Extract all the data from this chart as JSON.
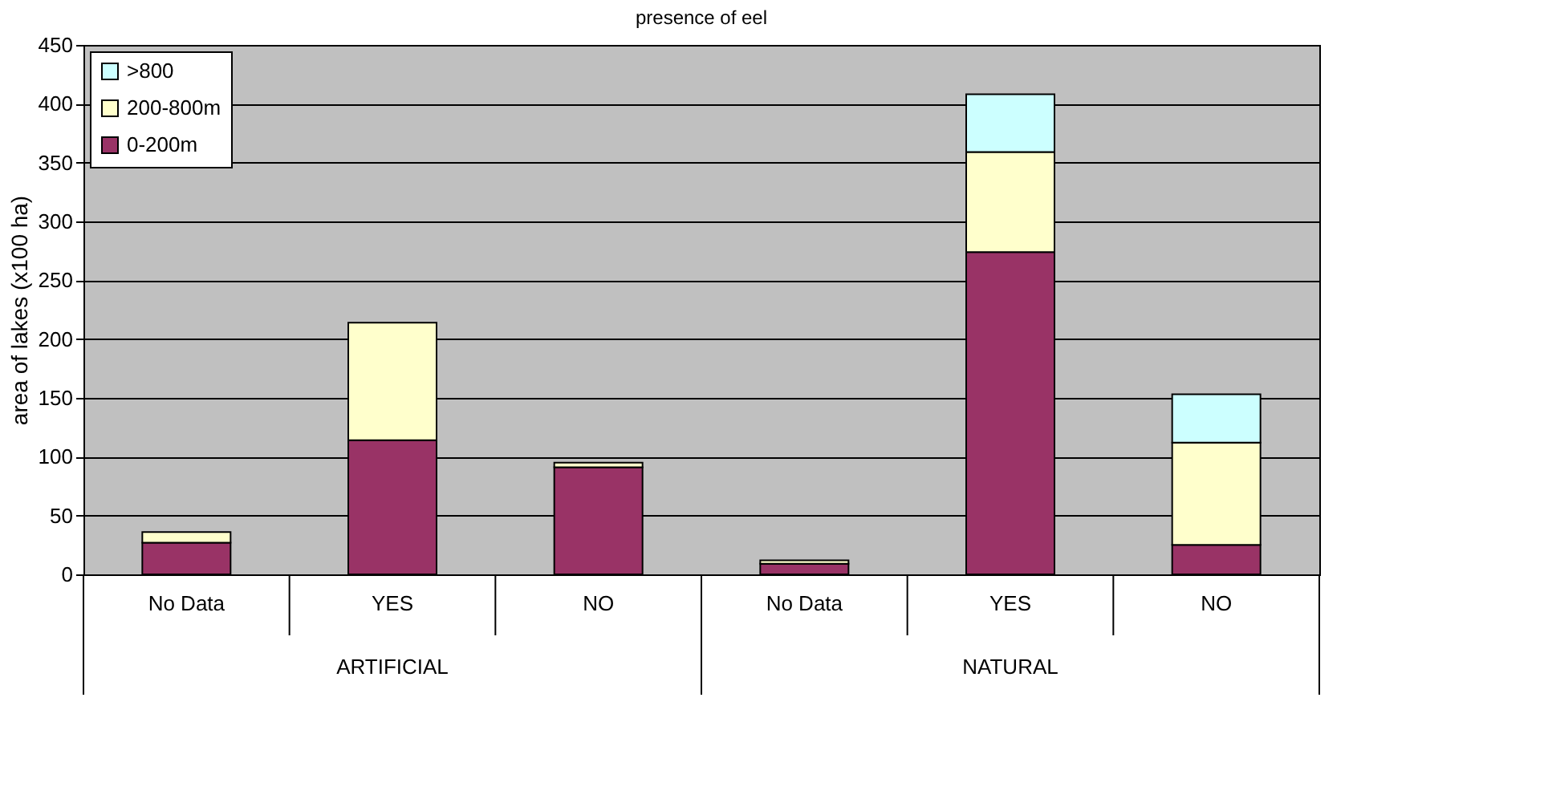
{
  "chart_data": {
    "type": "bar",
    "title": "presence of eel",
    "ylabel": "area of lakes (x100 ha)",
    "categories": [
      "No Data",
      "YES",
      "NO",
      "No Data",
      "YES",
      "NO"
    ],
    "annotations": [
      "ARTIFICIAL",
      "NATURAL"
    ],
    "stacked": true,
    "series": [
      {
        "name": "0-200m",
        "color": "#993366",
        "values": [
          27,
          114,
          91,
          9,
          274,
          25
        ]
      },
      {
        "name": "200-800m",
        "color": "#ffffcc",
        "values": [
          9,
          100,
          4,
          3,
          85,
          87
        ]
      },
      {
        "name": ">800",
        "color": "#ccffff",
        "values": [
          null,
          null,
          null,
          null,
          49,
          41
        ]
      }
    ],
    "ylim": [
      0,
      450
    ],
    "yticks": [
      0,
      50,
      100,
      150,
      200,
      250,
      300,
      350,
      400,
      450
    ],
    "grid": "y",
    "legend": "top left"
  }
}
